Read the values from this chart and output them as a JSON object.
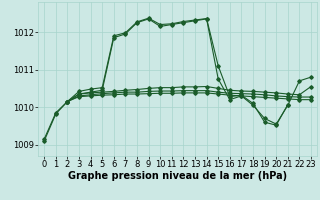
{
  "background_color": "#cce8e4",
  "grid_color": "#a8d4cc",
  "line_color": "#1a5c2a",
  "marker": "D",
  "marker_size": 1.8,
  "line_width": 0.8,
  "xlabel": "Graphe pression niveau de la mer (hPa)",
  "xlabel_fontsize": 7,
  "xlabel_fontweight": "bold",
  "tick_fontsize": 6,
  "xlim": [
    -0.5,
    23.5
  ],
  "ylim": [
    1008.7,
    1012.8
  ],
  "yticks": [
    1009,
    1010,
    1011,
    1012
  ],
  "xticks": [
    0,
    1,
    2,
    3,
    4,
    5,
    6,
    7,
    8,
    9,
    10,
    11,
    12,
    13,
    14,
    15,
    16,
    17,
    18,
    19,
    20,
    21,
    22,
    23
  ],
  "series": [
    [
      1009.15,
      1009.85,
      1010.15,
      1010.35,
      1010.4,
      1010.45,
      1011.85,
      1011.95,
      1012.25,
      1012.35,
      1012.15,
      1012.2,
      1012.25,
      1012.3,
      1012.35,
      1010.75,
      1010.2,
      1010.3,
      1010.05,
      1009.7,
      1009.55,
      1010.05,
      1010.7,
      1010.8
    ],
    [
      null,
      null,
      1010.15,
      1010.35,
      1010.38,
      1010.4,
      1010.42,
      1010.45,
      1010.47,
      1010.5,
      1010.52,
      1010.52,
      1010.54,
      1010.54,
      1010.55,
      1010.5,
      1010.45,
      1010.43,
      1010.42,
      1010.4,
      1010.38,
      1010.35,
      1010.33,
      1010.55
    ],
    [
      null,
      null,
      1010.15,
      1010.3,
      1010.33,
      1010.36,
      1010.38,
      1010.4,
      1010.4,
      1010.42,
      1010.43,
      1010.43,
      1010.44,
      1010.44,
      1010.44,
      1010.4,
      1010.37,
      1010.36,
      1010.35,
      1010.33,
      1010.3,
      1010.28,
      1010.27,
      1010.27
    ],
    [
      null,
      null,
      1010.15,
      1010.28,
      1010.3,
      1010.32,
      1010.33,
      1010.35,
      1010.35,
      1010.36,
      1010.37,
      1010.37,
      1010.38,
      1010.38,
      1010.38,
      1010.35,
      1010.32,
      1010.3,
      1010.28,
      1010.26,
      1010.24,
      1010.22,
      1010.2,
      1010.2
    ],
    [
      1009.1,
      1009.82,
      1010.15,
      1010.42,
      1010.48,
      1010.52,
      1011.9,
      1011.98,
      1012.27,
      1012.37,
      1012.2,
      1012.22,
      1012.28,
      1012.32,
      1012.36,
      1011.1,
      1010.28,
      1010.32,
      1010.1,
      1009.6,
      1009.52,
      1010.07,
      null,
      null
    ]
  ]
}
